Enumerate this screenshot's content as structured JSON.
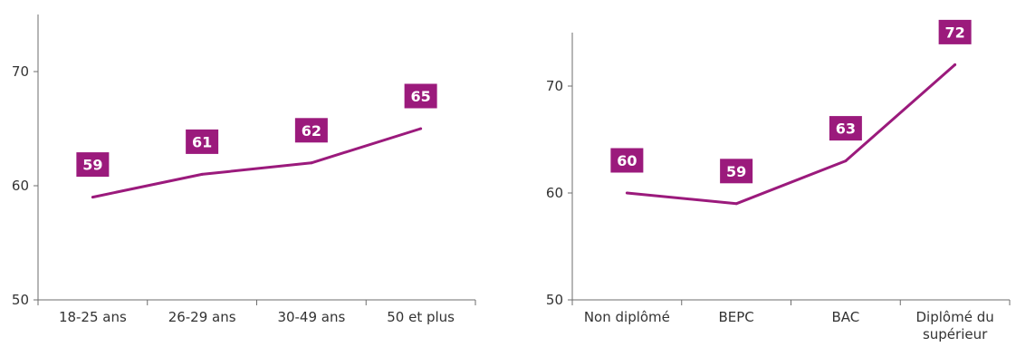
{
  "chart_data": [
    {
      "type": "line",
      "categories": [
        "18-25 ans",
        "26-29 ans",
        "30-49 ans",
        "50 et plus"
      ],
      "values": [
        59,
        61,
        62,
        65
      ],
      "data_labels": [
        "59",
        "61",
        "62",
        "65"
      ],
      "yticks": [
        "50",
        "60",
        "70"
      ],
      "ylim": [
        50,
        75
      ],
      "grid": false,
      "color": "#9b1a7c"
    },
    {
      "type": "line",
      "categories": [
        "Non diplômé",
        "BEPC",
        "BAC",
        "Diplômé du supérieur"
      ],
      "values": [
        60,
        59,
        63,
        72
      ],
      "data_labels": [
        "60",
        "59",
        "63",
        "72"
      ],
      "yticks": [
        "50",
        "60",
        "70"
      ],
      "ylim": [
        50,
        75
      ],
      "grid": false,
      "color": "#9b1a7c"
    }
  ]
}
